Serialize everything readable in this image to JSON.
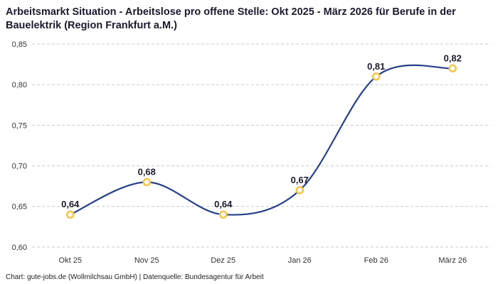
{
  "header": {
    "title": "Arbeitsmarkt Situation - Arbeitslose pro offene Stelle: Okt 2025 - März 2026 für Berufe in der Bauelektrik (Region Frankfurt a.M.)"
  },
  "chart_data": {
    "type": "line",
    "title": "Arbeitsmarkt Situation - Arbeitslose pro offene Stelle: Okt 2025 - März 2026 für Berufe in der Bauelektrik (Region Frankfurt a.M.)",
    "categories": [
      "Okt 25",
      "Nov 25",
      "Dez 25",
      "Jan 26",
      "Feb 26",
      "März 26"
    ],
    "values": [
      0.64,
      0.68,
      0.64,
      0.67,
      0.81,
      0.82
    ],
    "value_labels": [
      "0,64",
      "0,68",
      "0,64",
      "0,67",
      "0,81",
      "0,82"
    ],
    "ylim": [
      0.6,
      0.85
    ],
    "ytick_step": 0.05,
    "ytick_labels": [
      "0,60",
      "0,65",
      "0,70",
      "0,75",
      "0,80",
      "0,85"
    ],
    "xlabel": "",
    "ylabel": "",
    "grid": "horizontal-dashed",
    "legend": "none",
    "decimal_separator": ",",
    "colors": {
      "line": "#27408b",
      "marker_stroke": "#f6c54a",
      "marker_fill": "#ffffff",
      "grid": "#c9c9c9",
      "tick_text": "#333333",
      "value_label_text": "#1a1a2e"
    }
  },
  "footer": {
    "credit": "Chart: gute-jobs.de (Wollmilchsau GmbH) | Datenquelle: Bundesagentur für Arbeit"
  }
}
